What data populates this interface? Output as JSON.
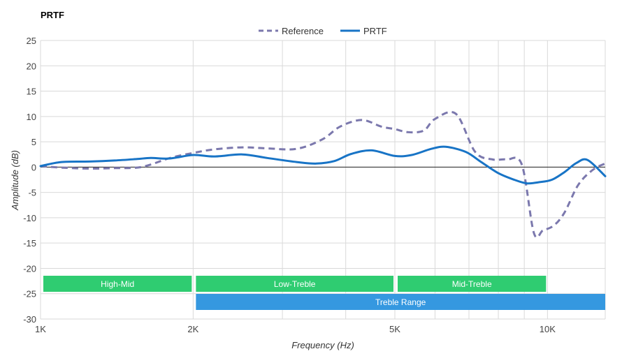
{
  "chart_data": {
    "type": "line",
    "title": "PRTF",
    "xlabel": "Frequency (Hz)",
    "ylabel": "Amplitude (dB)",
    "x_scale": "log",
    "xlim": [
      1000,
      13000
    ],
    "ylim": [
      -30,
      25
    ],
    "y_ticks": [
      25,
      20,
      15,
      10,
      5,
      0,
      -5,
      -10,
      -15,
      -20,
      -25,
      -30
    ],
    "x_ticks": [
      {
        "value": 1000,
        "label": "1K"
      },
      {
        "value": 2000,
        "label": "2K"
      },
      {
        "value": 5000,
        "label": "5K"
      },
      {
        "value": 10000,
        "label": "10K"
      }
    ],
    "x_minor_gridlines": [
      3000,
      4000,
      6000,
      7000,
      8000,
      9000,
      13000
    ],
    "grid": true,
    "legend_position": "top-center",
    "series": [
      {
        "name": "Reference",
        "style": "dashed",
        "color": "#7b78ad",
        "x": [
          1000,
          1100,
          1250,
          1400,
          1550,
          1650,
          1800,
          2000,
          2200,
          2500,
          2800,
          3200,
          3600,
          3900,
          4300,
          4700,
          5000,
          5300,
          5700,
          6000,
          6600,
          7200,
          7800,
          8300,
          8900,
          9400,
          9800,
          10300,
          10800,
          11500,
          12300,
          13000
        ],
        "values": [
          0.2,
          -0.1,
          -0.3,
          -0.2,
          -0.1,
          0.5,
          1.8,
          2.8,
          3.5,
          3.9,
          3.7,
          3.6,
          5.5,
          8.0,
          9.3,
          8.0,
          7.5,
          6.9,
          7.2,
          9.5,
          10.5,
          3.0,
          1.5,
          1.5,
          0.5,
          -13.0,
          -12.5,
          -11.5,
          -9.0,
          -3.5,
          -0.5,
          0.7
        ]
      },
      {
        "name": "PRTF",
        "style": "solid",
        "color": "#1874c6",
        "x": [
          1000,
          1100,
          1250,
          1400,
          1550,
          1650,
          1800,
          2000,
          2200,
          2500,
          2800,
          3200,
          3500,
          3800,
          4100,
          4500,
          5000,
          5400,
          5900,
          6300,
          6900,
          7400,
          8000,
          8600,
          9100,
          9600,
          10200,
          10800,
          11400,
          12000,
          13000
        ],
        "values": [
          0.2,
          1.0,
          1.1,
          1.3,
          1.6,
          1.8,
          1.7,
          2.4,
          2.1,
          2.5,
          1.8,
          1.0,
          0.7,
          1.2,
          2.6,
          3.3,
          2.2,
          2.4,
          3.6,
          4.0,
          3.0,
          1.0,
          -1.2,
          -2.5,
          -3.2,
          -3.0,
          -2.5,
          -1.0,
          0.8,
          1.4,
          -1.8
        ]
      }
    ],
    "bands": [
      {
        "label": "High-Mid",
        "from": 1000,
        "to": 2000,
        "row": 0,
        "color": "#2fcc71"
      },
      {
        "label": "Low-Treble",
        "from": 2000,
        "to": 5000,
        "row": 0,
        "color": "#2fcc71"
      },
      {
        "label": "Mid-Treble",
        "from": 5000,
        "to": 10000,
        "row": 0,
        "color": "#2fcc71"
      },
      {
        "label": "Treble Range",
        "from": 2000,
        "to": 13000,
        "row": 1,
        "color": "#3598e0"
      }
    ]
  }
}
